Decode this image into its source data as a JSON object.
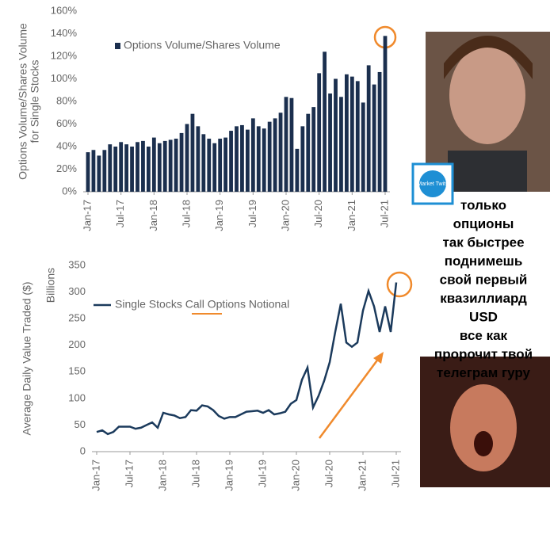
{
  "chart_data": [
    {
      "type": "bar",
      "y_label": [
        "Options Volume/Shares Volume",
        "for Single Stocks"
      ],
      "series": [
        {
          "name": "Options Volume/Shares Volume",
          "color": "#1b2f4e",
          "values": [
            35,
            37,
            32,
            37,
            42,
            40,
            44,
            42,
            40,
            44,
            45,
            40,
            48,
            43,
            45,
            46,
            47,
            52,
            60,
            69,
            58,
            51,
            47,
            43,
            47,
            48,
            54,
            58,
            59,
            55,
            65,
            58,
            56,
            62,
            65,
            70,
            84,
            83,
            38,
            58,
            69,
            75,
            105,
            124,
            87,
            100,
            84,
            104,
            102,
            98,
            79,
            112,
            95,
            106,
            138
          ]
        }
      ],
      "categories": [
        "Jan-17",
        null,
        null,
        null,
        null,
        null,
        "Jul-17",
        null,
        null,
        null,
        null,
        null,
        "Jan-18",
        null,
        null,
        null,
        null,
        null,
        "Jul-18",
        null,
        null,
        null,
        null,
        null,
        "Jan-19",
        null,
        null,
        null,
        null,
        null,
        "Jul-19",
        null,
        null,
        null,
        null,
        null,
        "Jan-20",
        null,
        null,
        null,
        null,
        null,
        "Jul-20",
        null,
        null,
        null,
        null,
        null,
        "Jan-21",
        null,
        null,
        null,
        null,
        null,
        "Jul-21"
      ],
      "ylim": [
        0,
        160
      ],
      "yticks": [
        {
          "value": 0,
          "label": "0%"
        },
        {
          "value": 20,
          "label": "20%"
        },
        {
          "value": 40,
          "label": "40%"
        },
        {
          "value": 60,
          "label": "60%"
        },
        {
          "value": 80,
          "label": "80%"
        },
        {
          "value": 100,
          "label": "100%"
        },
        {
          "value": 120,
          "label": "120%"
        },
        {
          "value": 140,
          "label": "140%"
        },
        {
          "value": 160,
          "label": "160%"
        }
      ],
      "grid": false
    },
    {
      "type": "line",
      "y_label": [
        "Average Daily Value Traded ($)"
      ],
      "y_unit": "Billions",
      "series": [
        {
          "name": "Single Stocks Call Options Notional",
          "color": "#1b3a5c",
          "values": [
            37,
            40,
            33,
            37,
            47,
            47,
            47,
            43,
            45,
            50,
            55,
            45,
            73,
            70,
            68,
            63,
            65,
            78,
            77,
            87,
            85,
            78,
            67,
            62,
            65,
            65,
            70,
            75,
            76,
            77,
            73,
            78,
            70,
            72,
            75,
            90,
            97,
            135,
            158,
            83,
            105,
            133,
            168,
            225,
            278,
            205,
            197,
            205,
            265,
            302,
            273,
            225,
            273,
            225,
            318
          ]
        }
      ],
      "categories": [
        "Jan-17",
        null,
        null,
        null,
        null,
        null,
        "Jul-17",
        null,
        null,
        null,
        null,
        null,
        "Jan-18",
        null,
        null,
        null,
        null,
        null,
        "Jul-18",
        null,
        null,
        null,
        null,
        null,
        "Jan-19",
        null,
        null,
        null,
        null,
        null,
        "Jul-19",
        null,
        null,
        null,
        null,
        null,
        "Jan-20",
        null,
        null,
        null,
        null,
        null,
        "Jul-20",
        null,
        null,
        null,
        null,
        null,
        "Jan-21",
        null,
        null,
        null,
        null,
        null,
        "Jul-21"
      ],
      "ylim": [
        0,
        350
      ],
      "yticks": [
        0,
        50,
        100,
        150,
        200,
        250,
        300,
        350
      ],
      "grid": false
    }
  ],
  "logo": "Market Twits",
  "caption": [
    "только",
    "опционы",
    "так быстрее",
    "поднимешь",
    "свой первый",
    "квазиллиард",
    "USD",
    "все как",
    "пророчит твой",
    "телеграм гуру"
  ]
}
